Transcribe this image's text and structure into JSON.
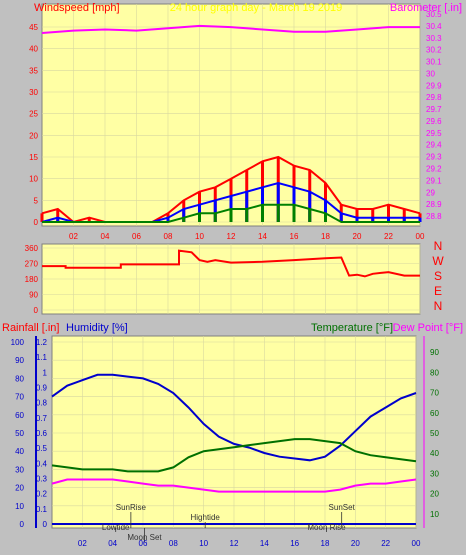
{
  "colors": {
    "plot_bg": "#ffffa4",
    "frame_bg": "#c0c0c0",
    "grid": "#d8d8a0",
    "wind_gust": "#ff0000",
    "wind_avg": "#0000ff",
    "wind_low": "#008000",
    "barometer": "#ff00ff",
    "direction": "#ff0000",
    "humidity": "#0000cc",
    "temperature": "#007000",
    "dewpoint": "#ff00ff",
    "rainfall": "#0000cc",
    "axis_red": "#ff0000",
    "axis_blue": "#0000cc",
    "axis_green": "#007000",
    "axis_magenta": "#ff00ff",
    "title_yellow": "#ffff00",
    "annotation": "#333333"
  },
  "chart_data": [
    {
      "type": "line",
      "panel": "wind",
      "title": "24 hour graph day - March 19 2019",
      "left_label": "Windspeed [mph]",
      "right_label": "Barometer [.in]",
      "x_ticks": [
        "02",
        "04",
        "06",
        "08",
        "10",
        "12",
        "14",
        "16",
        "18",
        "20",
        "22",
        "00"
      ],
      "y_left_ticks": [
        "0",
        "5",
        "10",
        "15",
        "20",
        "25",
        "30",
        "35",
        "40",
        "45"
      ],
      "y_left_range": [
        0,
        48
      ],
      "y_right_ticks": [
        "28.8",
        "28.9",
        "29",
        "29.1",
        "29.2",
        "29.3",
        "29.4",
        "29.5",
        "29.6",
        "29.7",
        "29.8",
        "29.9",
        "30",
        "30.1",
        "30.2",
        "30.3",
        "30.4",
        "30.5"
      ],
      "y_right_range": [
        28.75,
        30.5
      ],
      "x_range": [
        0,
        24
      ],
      "series": [
        {
          "role": "barometer",
          "x": [
            0,
            2,
            4,
            6,
            8,
            10,
            12,
            14,
            16,
            18,
            20,
            22,
            24
          ],
          "y": [
            30.34,
            30.36,
            30.37,
            30.36,
            30.38,
            30.4,
            30.39,
            30.37,
            30.35,
            30.35,
            30.37,
            30.39,
            30.39
          ]
        },
        {
          "role": "gust",
          "x": [
            0,
            1,
            2,
            3,
            4,
            5,
            6,
            7,
            8,
            9,
            10,
            11,
            12,
            13,
            14,
            15,
            16,
            17,
            18,
            19,
            20,
            21,
            22,
            23,
            24
          ],
          "y": [
            2,
            3,
            0,
            1,
            0,
            0,
            0,
            0,
            2,
            5,
            7,
            8,
            10,
            12,
            14,
            15,
            13,
            12,
            9,
            4,
            3,
            3,
            4,
            3,
            2
          ]
        },
        {
          "role": "average",
          "x": [
            0,
            1,
            2,
            3,
            4,
            5,
            6,
            7,
            8,
            9,
            10,
            11,
            12,
            13,
            14,
            15,
            16,
            17,
            18,
            19,
            20,
            21,
            22,
            23,
            24
          ],
          "y": [
            0,
            1,
            0,
            0,
            0,
            0,
            0,
            0,
            1,
            3,
            4,
            5,
            6,
            7,
            8,
            9,
            8,
            7,
            5,
            2,
            1,
            1,
            1,
            1,
            1
          ]
        },
        {
          "role": "low",
          "x": [
            0,
            1,
            2,
            3,
            4,
            5,
            6,
            7,
            8,
            9,
            10,
            11,
            12,
            13,
            14,
            15,
            16,
            17,
            18,
            19,
            20,
            21,
            22,
            23,
            24
          ],
          "y": [
            0,
            0,
            0,
            0,
            0,
            0,
            0,
            0,
            0,
            1,
            2,
            2,
            3,
            3,
            4,
            4,
            4,
            3,
            2,
            0,
            0,
            0,
            0,
            0,
            0
          ]
        }
      ]
    },
    {
      "type": "line",
      "panel": "direction",
      "left_label": "",
      "right_label": "",
      "y_left_ticks": [
        "0",
        "90",
        "180",
        "270",
        "360"
      ],
      "y_left_range": [
        0,
        360
      ],
      "compass": [
        "N",
        "W",
        "S",
        "E",
        "N"
      ],
      "x_range": [
        0,
        24
      ],
      "series": [
        {
          "role": "direction",
          "x": [
            0,
            1.5,
            1.5,
            5,
            5,
            8.7,
            8.7,
            9.5,
            10,
            10.5,
            11,
            12,
            14,
            16,
            18,
            19,
            19.5,
            20,
            20.5,
            21,
            22,
            23,
            24
          ],
          "y": [
            255,
            255,
            245,
            245,
            265,
            265,
            345,
            335,
            290,
            280,
            290,
            275,
            280,
            290,
            300,
            305,
            200,
            205,
            195,
            210,
            220,
            200,
            200
          ]
        }
      ]
    },
    {
      "type": "line",
      "panel": "weather",
      "left_label_1": "Rainfall [.in]",
      "left_label_2": "Humidity [%]",
      "right_label_1": "Temperature [°F]",
      "right_label_2": "Dew Point [°F]",
      "y_humidity_ticks": [
        "0",
        "10",
        "20",
        "30",
        "40",
        "50",
        "60",
        "70",
        "80",
        "90",
        "100"
      ],
      "y_humidity_range": [
        0,
        100
      ],
      "y_rain_ticks": [
        "0",
        "0.1",
        "0.2",
        "0.3",
        "0.4",
        "0.5",
        "0.6",
        "0.7",
        "0.8",
        "0.9",
        "1",
        "1.1",
        "1.2"
      ],
      "y_rain_range": [
        0,
        1.2
      ],
      "y_temp_ticks": [
        "10",
        "20",
        "30",
        "40",
        "50",
        "60",
        "70",
        "80",
        "90"
      ],
      "y_temp_range": [
        5,
        95
      ],
      "x_ticks": [
        "02",
        "04",
        "06",
        "08",
        "10",
        "12",
        "14",
        "16",
        "18",
        "20",
        "22",
        "00"
      ],
      "x_range": [
        0,
        24
      ],
      "series": [
        {
          "role": "humidity",
          "x": [
            0,
            1,
            2,
            3,
            4,
            5,
            6,
            7,
            8,
            9,
            10,
            11,
            12,
            13,
            14,
            15,
            16,
            17,
            18,
            19,
            20,
            21,
            22,
            23,
            24
          ],
          "y": [
            70,
            76,
            79,
            82,
            82,
            81,
            80,
            77,
            72,
            64,
            55,
            48,
            44,
            42,
            39,
            37,
            36,
            35,
            37,
            43,
            51,
            59,
            64,
            69,
            72
          ]
        },
        {
          "role": "temperature",
          "x": [
            0,
            1,
            2,
            3,
            4,
            5,
            6,
            7,
            8,
            9,
            10,
            11,
            12,
            13,
            14,
            15,
            16,
            17,
            18,
            19,
            20,
            21,
            22,
            23,
            24
          ],
          "y": [
            34,
            33,
            32,
            32,
            32,
            31,
            31,
            31,
            33,
            38,
            41,
            42,
            43,
            44,
            45,
            46,
            47,
            47,
            46,
            45,
            41,
            39,
            38,
            37,
            36
          ]
        },
        {
          "role": "dewpoint",
          "x": [
            0,
            1,
            2,
            3,
            4,
            5,
            6,
            7,
            8,
            9,
            10,
            11,
            12,
            13,
            14,
            15,
            16,
            17,
            18,
            19,
            20,
            21,
            22,
            23,
            24
          ],
          "y": [
            25,
            27,
            27,
            27,
            27,
            26,
            25,
            24,
            24,
            23,
            22,
            21,
            21,
            21,
            21,
            21,
            21,
            21,
            21,
            22,
            24,
            25,
            25,
            26,
            27
          ]
        },
        {
          "role": "rainfall",
          "x": [
            0,
            24
          ],
          "y": [
            0,
            0
          ]
        }
      ],
      "annotations": [
        {
          "label": "SunRise",
          "x": 5.2,
          "level": 0
        },
        {
          "label": "Lowtide",
          "x": 4.2,
          "level": 2
        },
        {
          "label": "Moon Set",
          "x": 6.1,
          "level": 3
        },
        {
          "label": "Hightide",
          "x": 10.1,
          "level": 1
        },
        {
          "label": "SunSet",
          "x": 19.1,
          "level": 0
        },
        {
          "label": "Moon Rise",
          "x": 18.1,
          "level": 2
        }
      ]
    }
  ]
}
